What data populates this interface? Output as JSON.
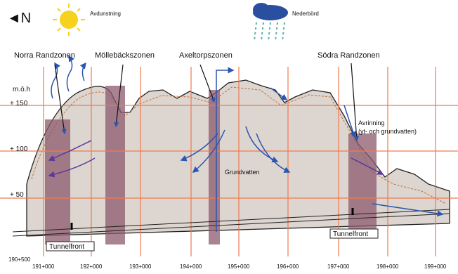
{
  "compass": "◄N",
  "legend": {
    "evaporation": "Avdunstning",
    "precipitation": "Nederbörd"
  },
  "zones": [
    "Norra Randzonen",
    "Möllebäckszonen",
    "Axeltorpszonen",
    "Södra Randzonen"
  ],
  "axis": {
    "unit": "m.ö.h",
    "labels": [
      "+ 150",
      "+ 100",
      "+ 50"
    ]
  },
  "annotations": {
    "runoff": "Avrinning",
    "runoff_detail": "(yt- och grundvatten)",
    "groundwater": "Grundvatten"
  },
  "tunnel_fronts": [
    "Tunnelfront",
    "Tunnelfront"
  ],
  "chainage": [
    "190+500",
    "191+000",
    "192+000",
    "193+000",
    "194+000",
    "195+000",
    "196+000",
    "197+000",
    "198+000",
    "199+000"
  ]
}
